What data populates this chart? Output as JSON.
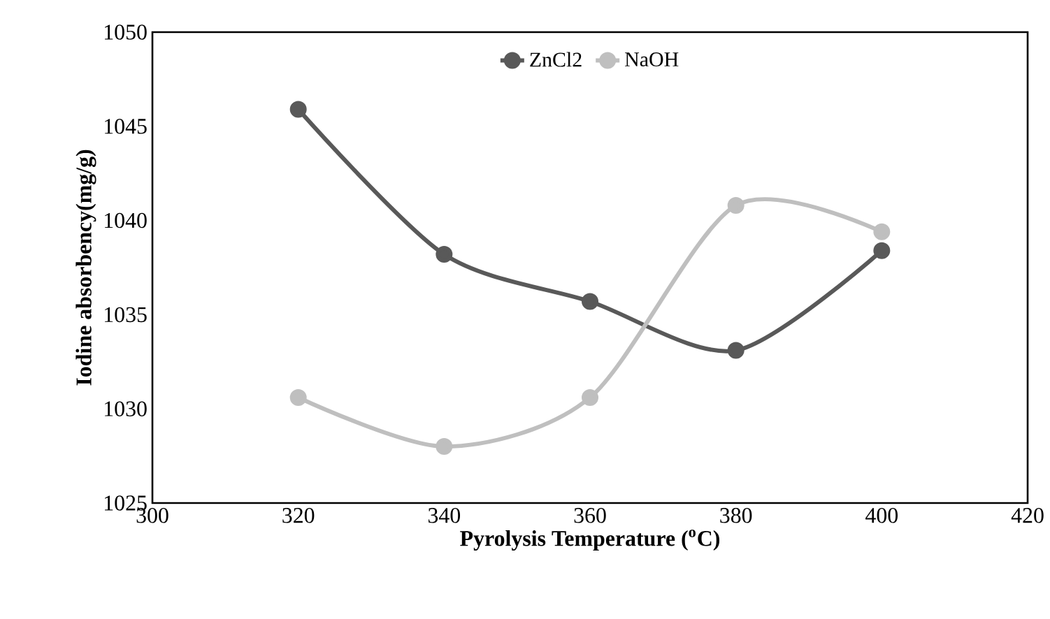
{
  "chart_data": {
    "type": "line",
    "xlabel": "Pyrolysis Temperature ($^{o}$C)",
    "ylabel": "Iodine absorbency(mg/g)",
    "x": [
      320,
      340,
      360,
      380,
      400
    ],
    "series": [
      {
        "name": "ZnCl2",
        "color": "#595959",
        "values": [
          1045.9,
          1038.2,
          1035.7,
          1033.1,
          1038.4
        ]
      },
      {
        "name": "NaOH",
        "color": "#bfbfbf",
        "values": [
          1030.6,
          1028.0,
          1030.6,
          1040.8,
          1039.4
        ]
      }
    ],
    "xlim": [
      300,
      420
    ],
    "xticks": [
      300,
      320,
      340,
      360,
      380,
      400,
      420
    ],
    "ylim": [
      1025,
      1050
    ],
    "yticks": [
      1025,
      1030,
      1035,
      1040,
      1045,
      1050
    ],
    "legend": "top",
    "marker": "circle",
    "grid": false
  }
}
